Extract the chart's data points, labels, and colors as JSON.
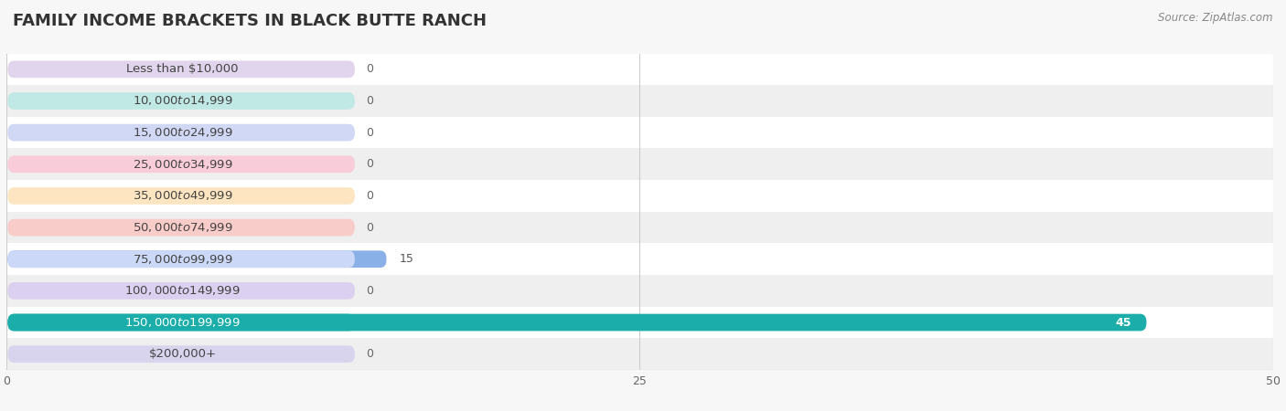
{
  "title": "FAMILY INCOME BRACKETS IN BLACK BUTTE RANCH",
  "source": "Source: ZipAtlas.com",
  "categories": [
    "Less than $10,000",
    "$10,000 to $14,999",
    "$15,000 to $24,999",
    "$25,000 to $34,999",
    "$35,000 to $49,999",
    "$50,000 to $74,999",
    "$75,000 to $99,999",
    "$100,000 to $149,999",
    "$150,000 to $199,999",
    "$200,000+"
  ],
  "values": [
    0,
    0,
    0,
    0,
    0,
    0,
    15,
    0,
    45,
    0
  ],
  "bar_colors": [
    "#c5b3d5",
    "#7ececa",
    "#a8b4e8",
    "#f0a0b8",
    "#f8c898",
    "#f0a8a0",
    "#8ab0e8",
    "#c0a8d8",
    "#1aadaa",
    "#b0aad5"
  ],
  "label_bg_colors": [
    "#e0d5ec",
    "#c0e8e5",
    "#d0d8f5",
    "#f8ccd8",
    "#fce5c0",
    "#f8ccc8",
    "#ccd8f8",
    "#dcd0f0",
    "#1aadaa",
    "#d8d4ee"
  ],
  "xlim": [
    0,
    50
  ],
  "xticks": [
    0,
    25,
    50
  ],
  "background_color": "#f7f7f7",
  "row_bg_colors": [
    "#ffffff",
    "#efefef"
  ],
  "title_fontsize": 13,
  "label_fontsize": 9.5,
  "value_fontsize": 9,
  "source_fontsize": 8.5
}
